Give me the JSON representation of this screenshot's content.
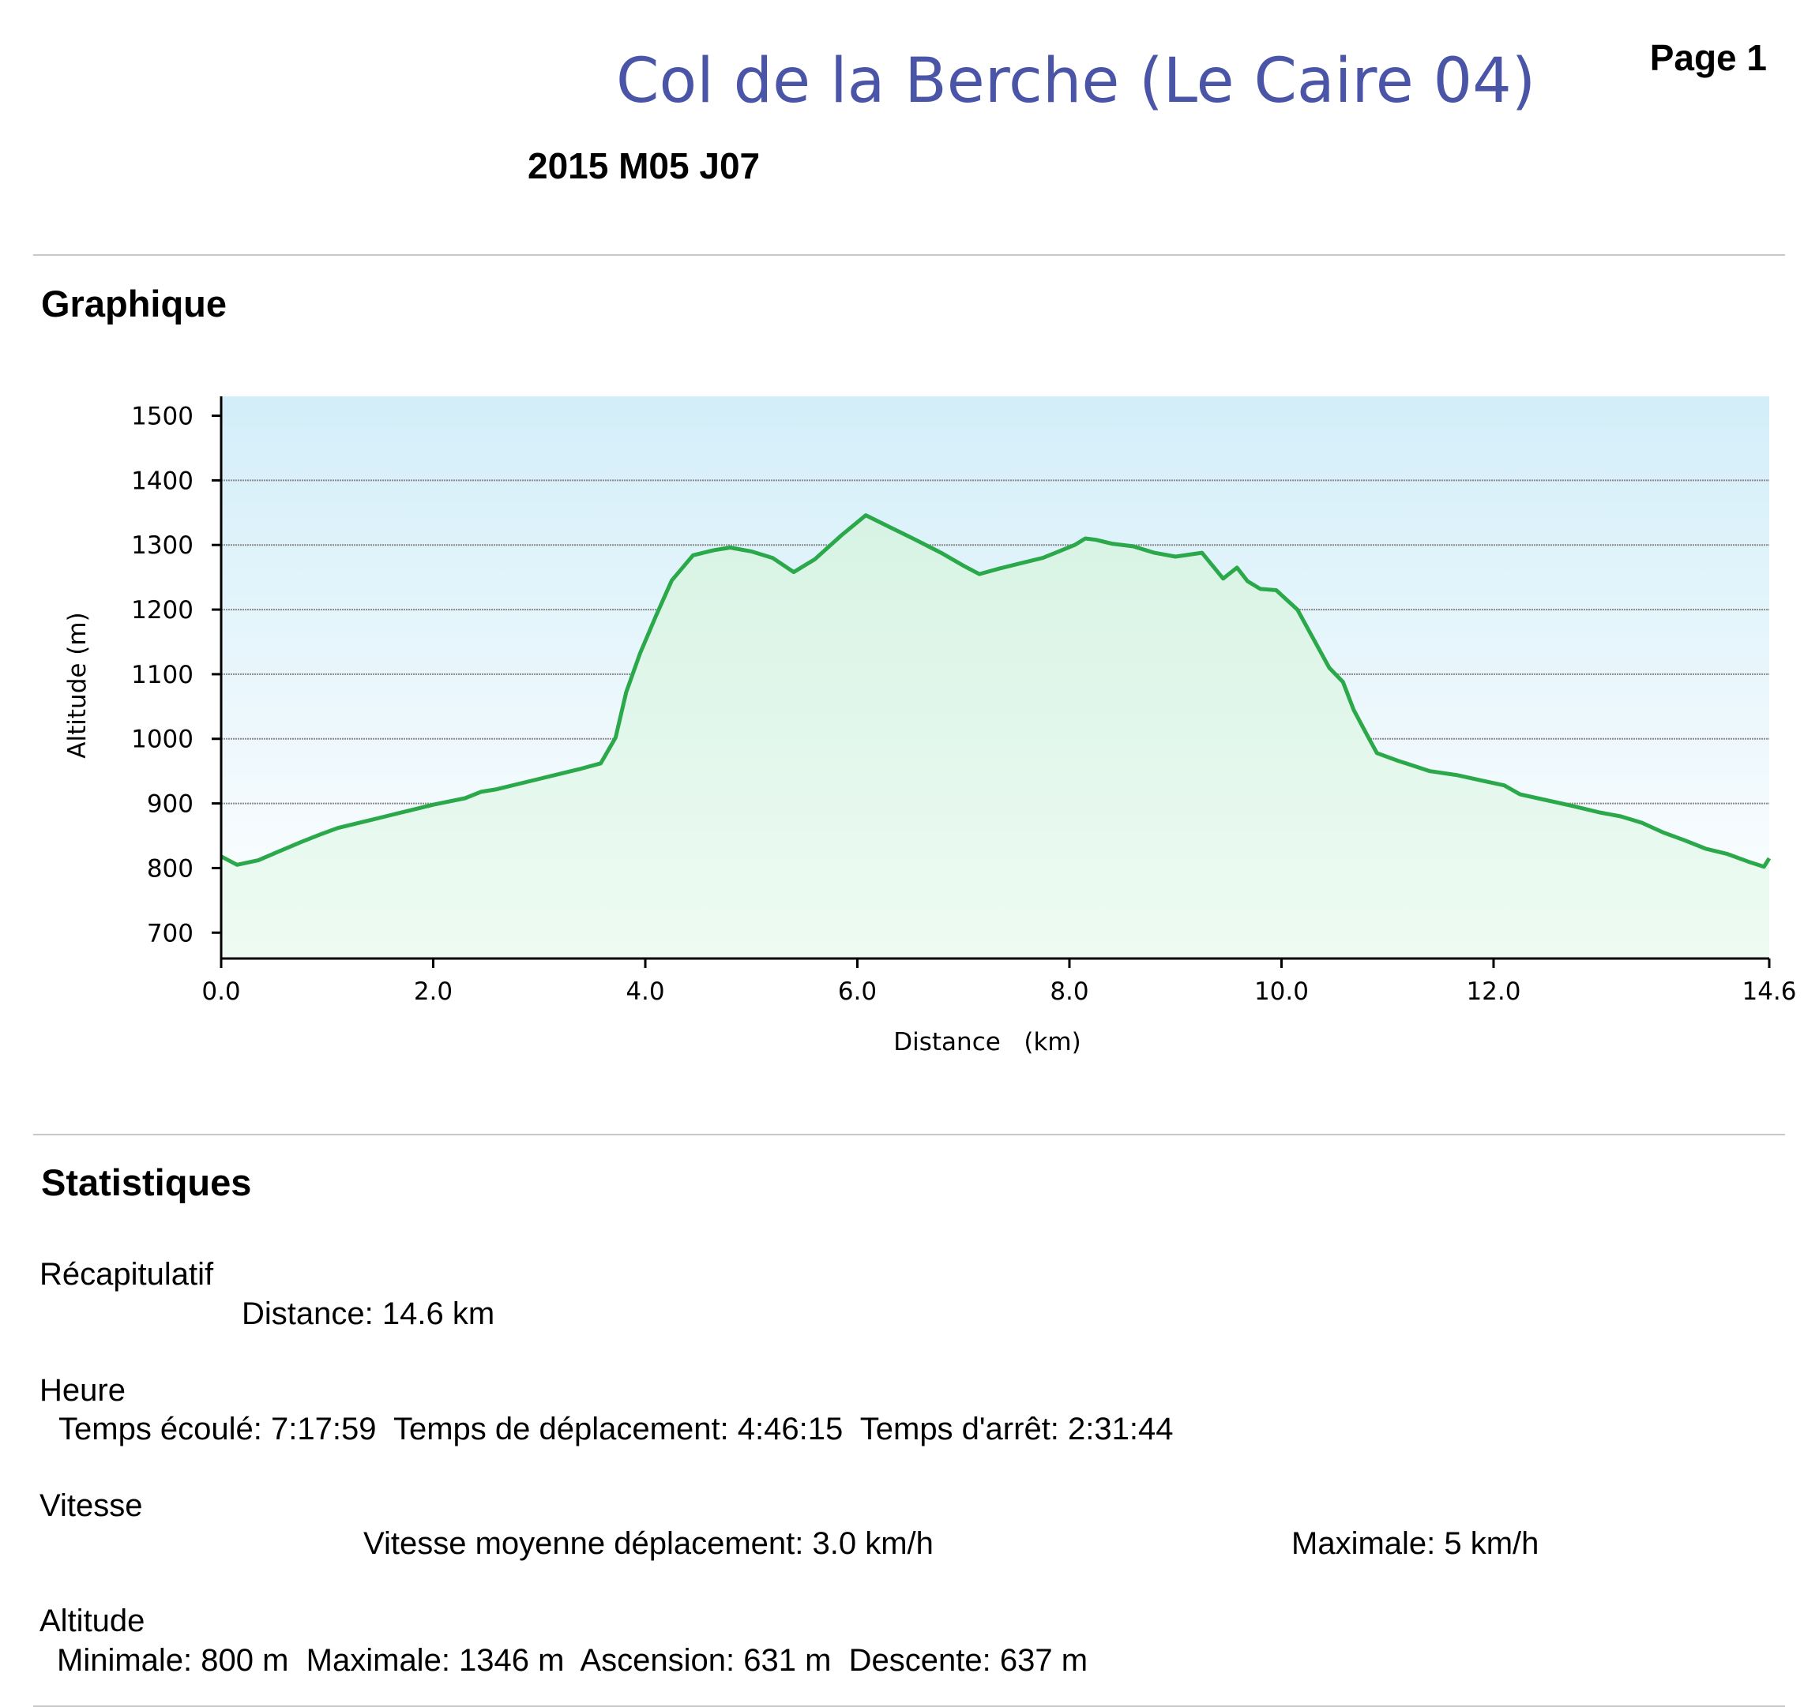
{
  "header": {
    "title": "Col de la Berche (Le Caire 04)",
    "page_label": "Page 1",
    "date": "2015 M05 J07"
  },
  "sections": {
    "graph_heading": "Graphique",
    "stats_heading": "Statistiques"
  },
  "stats": {
    "summary_label": "Récapitulatif",
    "distance": "Distance: 14.6 km",
    "time_label": "Heure",
    "time_line": "Temps écoulé: 7:17:59  Temps de déplacement: 4:46:15  Temps d'arrêt: 2:31:44",
    "speed_label": "Vitesse",
    "speed_avg": "Vitesse moyenne déplacement: 3.0 km/h",
    "speed_max": "Maximale: 5 km/h",
    "altitude_label": "Altitude",
    "altitude_line": "Minimale: 800 m  Maximale: 1346 m  Ascension: 631 m  Descente: 637 m"
  },
  "colors": {
    "line": "#2aa84a",
    "sky_top": "#d3eef9",
    "sky_bottom": "#ffffff",
    "grid": "#8a8a8a"
  },
  "chart_data": {
    "type": "area",
    "xlabel": "Distance   (km)",
    "ylabel": "Altitude (m)",
    "xlim": [
      0,
      14.6
    ],
    "ylim": [
      660,
      1530
    ],
    "xticks": [
      "0.0",
      "2.0",
      "4.0",
      "6.0",
      "8.0",
      "10.0",
      "12.0",
      "14.6"
    ],
    "xtick_values": [
      0,
      2,
      4,
      6,
      8,
      10,
      12,
      14.6
    ],
    "yticks": [
      "700",
      "800",
      "900",
      "1000",
      "1100",
      "1200",
      "1300",
      "1400",
      "1500"
    ],
    "ytick_values": [
      700,
      800,
      900,
      1000,
      1100,
      1200,
      1300,
      1400,
      1500
    ],
    "grid": true,
    "series": [
      {
        "x": [
          0,
          0.15,
          0.35,
          0.55,
          0.75,
          0.95,
          1.1,
          1.25,
          1.4,
          1.55,
          1.75,
          2.0,
          2.3,
          2.45,
          2.6,
          2.8,
          3.0,
          3.2,
          3.4,
          3.58,
          3.72,
          3.82,
          3.95,
          4.1,
          4.25,
          4.45,
          4.65,
          4.8,
          5.0,
          5.2,
          5.4,
          5.6,
          5.85,
          6.08,
          6.3,
          6.55,
          6.8,
          7.0,
          7.15,
          7.35,
          7.55,
          7.75,
          7.9,
          8.05,
          8.15,
          8.25,
          8.4,
          8.6,
          8.8,
          9.0,
          9.25,
          9.45,
          9.58,
          9.68,
          9.8,
          9.95,
          10.15,
          10.35,
          10.45,
          10.58,
          10.68,
          10.8,
          10.9,
          11.1,
          11.4,
          11.65,
          11.9,
          12.1,
          12.25,
          12.5,
          12.75,
          13.0,
          13.2,
          13.4,
          13.6,
          13.8,
          14.0,
          14.2,
          14.4,
          14.55,
          14.6
        ],
        "y": [
          818,
          805,
          812,
          826,
          840,
          853,
          862,
          868,
          874,
          880,
          888,
          898,
          908,
          918,
          922,
          930,
          938,
          946,
          954,
          962,
          1002,
          1072,
          1132,
          1190,
          1245,
          1284,
          1292,
          1296,
          1290,
          1280,
          1258,
          1278,
          1315,
          1346,
          1328,
          1308,
          1287,
          1268,
          1255,
          1264,
          1272,
          1280,
          1290,
          1300,
          1310,
          1308,
          1302,
          1298,
          1288,
          1282,
          1288,
          1248,
          1265,
          1244,
          1232,
          1230,
          1200,
          1140,
          1110,
          1088,
          1045,
          1008,
          978,
          966,
          950,
          944,
          935,
          928,
          914,
          905,
          896,
          886,
          880,
          870,
          855,
          843,
          830,
          822,
          810,
          802,
          815
        ]
      }
    ]
  }
}
